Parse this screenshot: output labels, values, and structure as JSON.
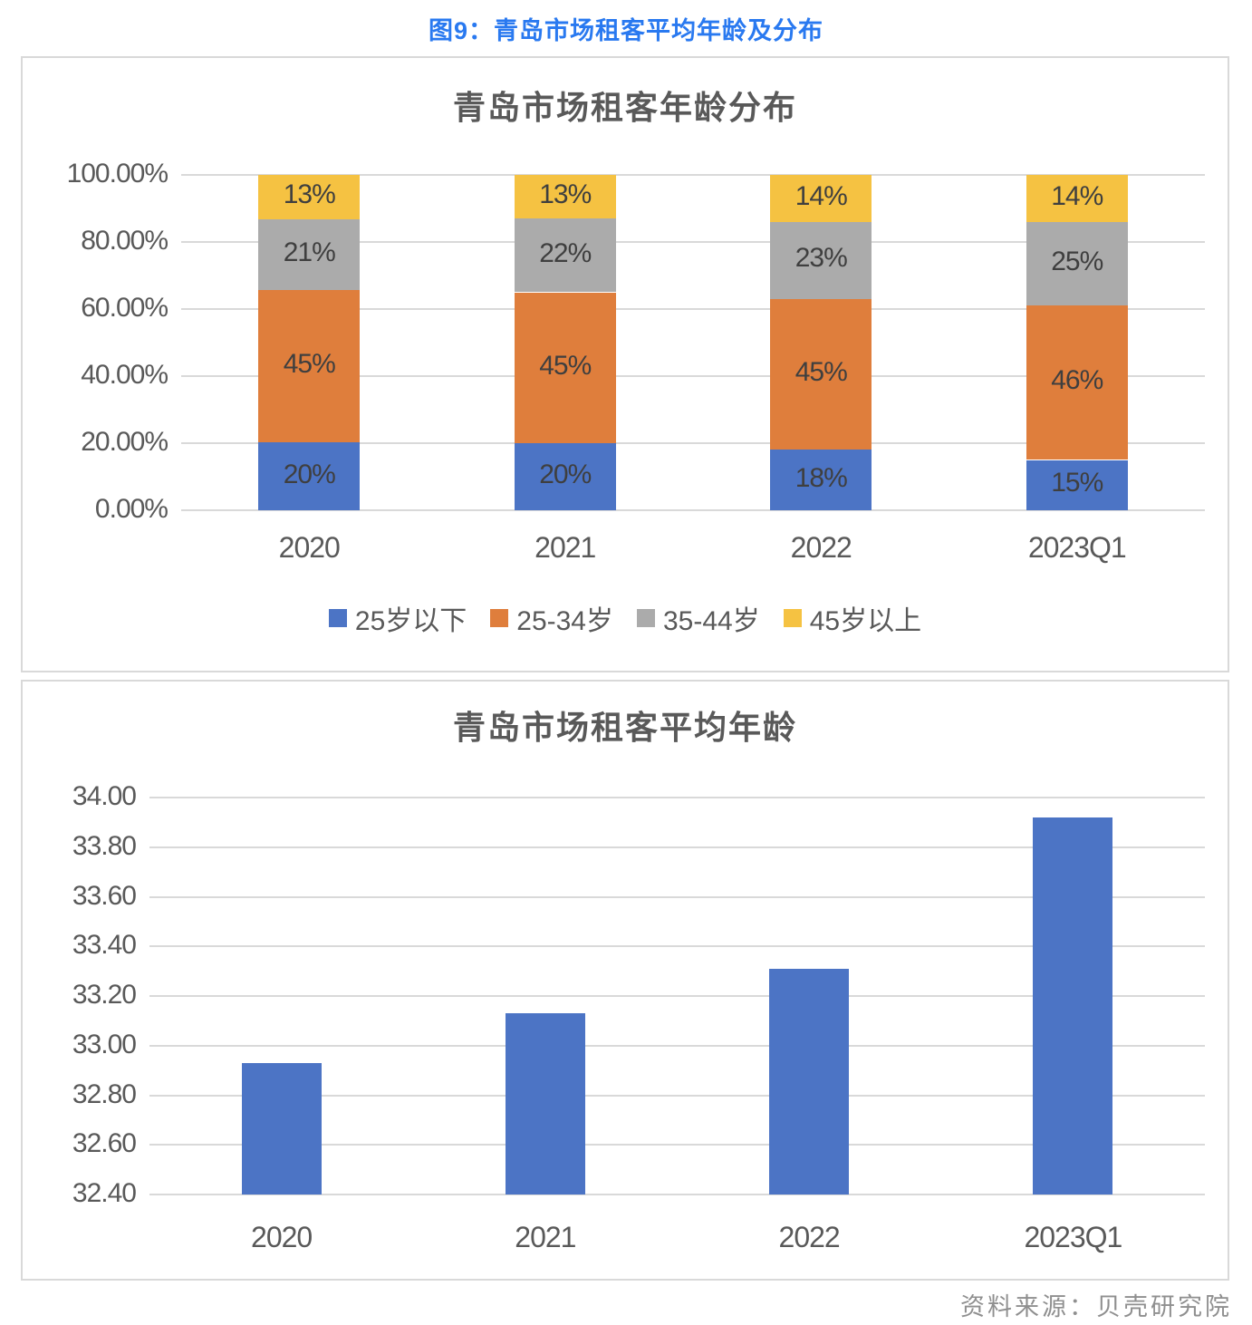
{
  "page_title": "图9：青岛市场租客平均年龄及分布",
  "source_note": "资料来源：贝壳研究院",
  "colors": {
    "page_title_blue": "#2979F0",
    "chart_title_gray": "#595959",
    "axis_text": "#595959",
    "gridline": "#D9D9D9",
    "panel_border": "#D9D9D9",
    "bar_label": "#3F3F3F",
    "source_text": "#8F8F8F",
    "series_blue": "#4C74C5",
    "series_orange": "#DF7E3C",
    "series_gray": "#ABABAB",
    "series_yellow": "#F5C242"
  },
  "chart_data": [
    {
      "type": "bar",
      "subtype": "stacked-percent",
      "title": "青岛市场租客年龄分布",
      "categories": [
        "2020",
        "2021",
        "2022",
        "2023Q1"
      ],
      "series": [
        {
          "name": "25岁以下",
          "color": "#4C74C5",
          "values": [
            20,
            20,
            18,
            15
          ],
          "labels": [
            "20%",
            "20%",
            "18%",
            "15%"
          ]
        },
        {
          "name": "25-34岁",
          "color": "#DF7E3C",
          "values": [
            45,
            45,
            45,
            46
          ],
          "labels": [
            "45%",
            "45%",
            "45%",
            "46%"
          ]
        },
        {
          "name": "35-44岁",
          "color": "#ABABAB",
          "values": [
            21,
            22,
            23,
            25
          ],
          "labels": [
            "21%",
            "22%",
            "23%",
            "25%"
          ]
        },
        {
          "name": "45岁以上",
          "color": "#F5C242",
          "values": [
            13,
            13,
            14,
            14
          ],
          "labels": [
            "13%",
            "13%",
            "14%",
            "14%"
          ]
        }
      ],
      "y_ticks": [
        "100.00%",
        "80.00%",
        "60.00%",
        "40.00%",
        "20.00%",
        "0.00%"
      ],
      "ylim": [
        0,
        100
      ],
      "grid": true,
      "legend_position": "bottom"
    },
    {
      "type": "bar",
      "subtype": "single-series",
      "title": "青岛市场租客平均年龄",
      "categories": [
        "2020",
        "2021",
        "2022",
        "2023Q1"
      ],
      "values": [
        32.93,
        33.13,
        33.31,
        33.92
      ],
      "series_color": "#4C74C5",
      "y_ticks": [
        "34.00",
        "33.80",
        "33.60",
        "33.40",
        "33.20",
        "33.00",
        "32.80",
        "32.60",
        "32.40"
      ],
      "ylim": [
        32.4,
        34.0
      ],
      "grid": true,
      "legend_position": "none"
    }
  ]
}
